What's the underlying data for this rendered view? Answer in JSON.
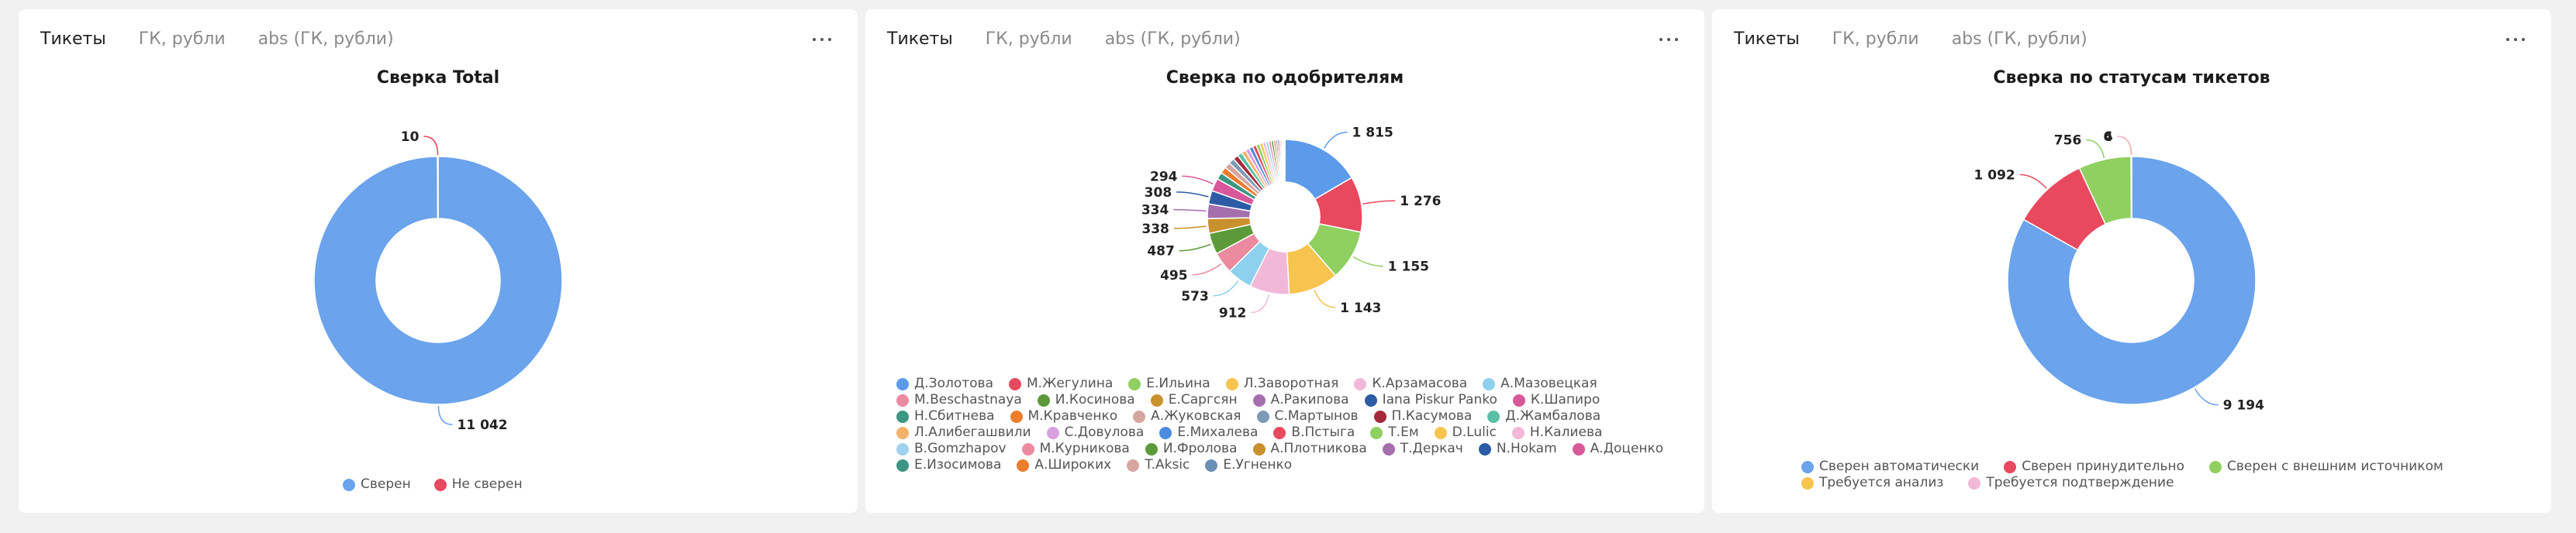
{
  "panels": [
    {
      "tabs": [
        "Тикеты",
        "ГК, рубли",
        "abs (ГК, рубли)"
      ],
      "active_tab": 0,
      "chart_data": {
        "type": "pie",
        "title": "Сверка Total",
        "donut": true,
        "slices": [
          {
            "name": "Сверен",
            "value": 11042,
            "label": "11 042",
            "color": "#6ba3ec"
          },
          {
            "name": "Не сверен",
            "value": 10,
            "label": "10",
            "color": "#e8495f"
          }
        ],
        "legend_position": "bottom"
      }
    },
    {
      "tabs": [
        "Тикеты",
        "ГК, рубли",
        "abs (ГК, рубли)"
      ],
      "active_tab": 0,
      "chart_data": {
        "type": "pie",
        "title": "Сверка по одобрителям",
        "donut": true,
        "slices": [
          {
            "name": "Д.Золотова",
            "value": 1815,
            "label": "1 815",
            "color": "#5b9bea"
          },
          {
            "name": "М.Жегулина",
            "value": 1276,
            "label": "1 276",
            "color": "#e8495f"
          },
          {
            "name": "Е.Ильина",
            "value": 1155,
            "label": "1 155",
            "color": "#8fd061"
          },
          {
            "name": "Л.Заворотная",
            "value": 1143,
            "label": "1 143",
            "color": "#f6c44f"
          },
          {
            "name": "К.Арзамасова",
            "value": 912,
            "label": "912",
            "color": "#f2b8d8"
          },
          {
            "name": "А.Мазовецкая",
            "value": 573,
            "label": "573",
            "color": "#8ed0ee"
          },
          {
            "name": "M.Beschastnaya",
            "value": 495,
            "label": "495",
            "color": "#ec8aa0"
          },
          {
            "name": "И.Косинова",
            "value": 487,
            "label": "487",
            "color": "#5c9a39"
          },
          {
            "name": "Е.Саргсян",
            "value": 338,
            "label": "338",
            "color": "#c9912e"
          },
          {
            "name": "А.Ракипова",
            "value": 334,
            "label": "334",
            "color": "#a56fae"
          },
          {
            "name": "Iana Piskur Panko",
            "value": 308,
            "label": "308",
            "color": "#2d5ba5"
          },
          {
            "name": "К.Шапиро",
            "value": 294,
            "label": "294",
            "color": "#d8589a"
          },
          {
            "name": "Н.Сбитнева",
            "value": 160,
            "label": "",
            "color": "#3d9683"
          },
          {
            "name": "М.Кравченко",
            "value": 150,
            "label": "",
            "color": "#ec7d2c"
          },
          {
            "name": "А.Жуковская",
            "value": 140,
            "label": "",
            "color": "#d6a59f"
          },
          {
            "name": "С.Мартынов",
            "value": 130,
            "label": "",
            "color": "#7e9bb5"
          },
          {
            "name": "П.Касумова",
            "value": 120,
            "label": "",
            "color": "#a52a3c"
          },
          {
            "name": "Д.Жамбалова",
            "value": 110,
            "label": "",
            "color": "#5bbfa4"
          },
          {
            "name": "Л.Алибегашвили",
            "value": 100,
            "label": "",
            "color": "#f3b26a"
          },
          {
            "name": "С.Довулова",
            "value": 95,
            "label": "",
            "color": "#d9a1e0"
          },
          {
            "name": "Е.Михалева",
            "value": 90,
            "label": "",
            "color": "#4a8be0"
          },
          {
            "name": "В.Пстыга",
            "value": 85,
            "label": "",
            "color": "#e8495f"
          },
          {
            "name": "Т.Ем",
            "value": 80,
            "label": "",
            "color": "#8fd061"
          },
          {
            "name": "D.Lulic",
            "value": 75,
            "label": "",
            "color": "#f6c44f"
          },
          {
            "name": "Н.Калиева",
            "value": 70,
            "label": "",
            "color": "#f2b8d8"
          },
          {
            "name": "B.Gomzhapov",
            "value": 65,
            "label": "",
            "color": "#9ed2ef"
          },
          {
            "name": "М.Курникова",
            "value": 60,
            "label": "",
            "color": "#ec8aa0"
          },
          {
            "name": "И.Фролова",
            "value": 55,
            "label": "",
            "color": "#5c9a39"
          },
          {
            "name": "А.Плотникова",
            "value": 50,
            "label": "",
            "color": "#c9912e"
          },
          {
            "name": "Т.Деркач",
            "value": 45,
            "label": "",
            "color": "#a56fae"
          },
          {
            "name": "N.Hokam",
            "value": 40,
            "label": "",
            "color": "#2d5ba5"
          },
          {
            "name": "А.Доценко",
            "value": 35,
            "label": "",
            "color": "#d8589a"
          },
          {
            "name": "Е.Изосимова",
            "value": 30,
            "label": "",
            "color": "#3d9683"
          },
          {
            "name": "А.Широких",
            "value": 25,
            "label": "",
            "color": "#ec7d2c"
          },
          {
            "name": "T.Aksic",
            "value": 20,
            "label": "",
            "color": "#d6a59f"
          },
          {
            "name": "Е.Угненко",
            "value": 15,
            "label": "",
            "color": "#6b8fb5"
          }
        ],
        "legend_position": "bottom"
      }
    },
    {
      "tabs": [
        "Тикеты",
        "ГК, рубли",
        "abs (ГК, рубли)"
      ],
      "active_tab": 0,
      "chart_data": {
        "type": "pie",
        "title": "Сверка по статусам тикетов",
        "donut": true,
        "slices": [
          {
            "name": "Сверен автоматически",
            "value": 9194,
            "label": "9 194",
            "color": "#6ba3ec"
          },
          {
            "name": "Сверен принудительно",
            "value": 1092,
            "label": "1 092",
            "color": "#e8495f"
          },
          {
            "name": "Сверен с внешним источником",
            "value": 756,
            "label": "756",
            "color": "#8fd061"
          },
          {
            "name": "Требуется анализ",
            "value": 6,
            "label": "6",
            "color": "#f6c44f"
          },
          {
            "name": "Требуется подтверждение",
            "value": 4,
            "label": "4",
            "color": "#f2b8d8"
          }
        ],
        "legend_position": "bottom"
      }
    }
  ]
}
